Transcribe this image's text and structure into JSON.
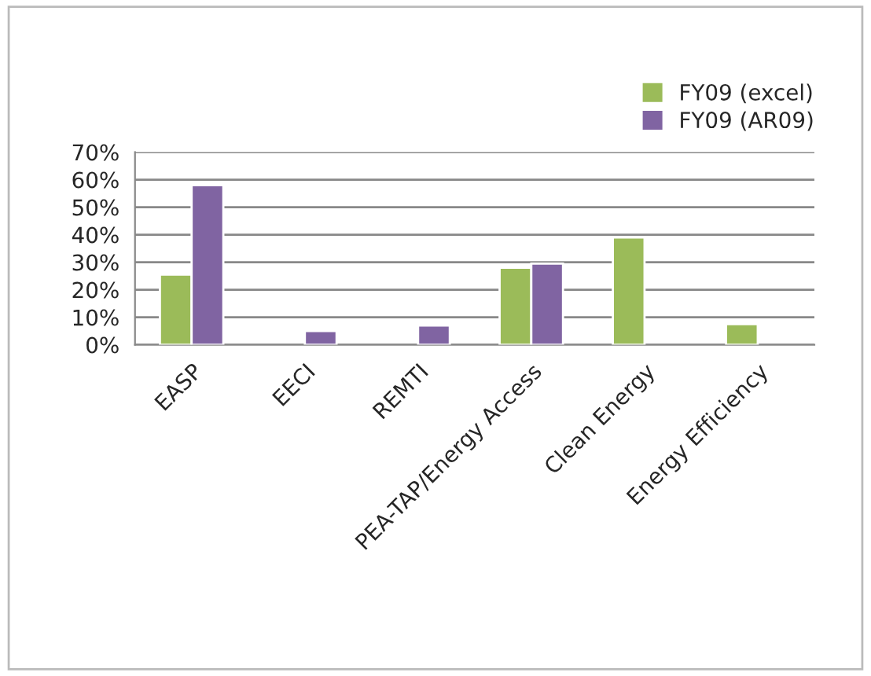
{
  "chart_data": {
    "type": "bar",
    "categories": [
      "EASP",
      "EECI",
      "REMTI",
      "PEA-TAP/Energy Access",
      "Clean Energy",
      "Energy Efficiency"
    ],
    "series": [
      {
        "name": "FY09 (excel)",
        "color": "#9bbb59",
        "values": [
          25.5,
          null,
          null,
          28,
          39,
          7.5
        ]
      },
      {
        "name": "FY09 (AR09)",
        "color": "#8064a2",
        "values": [
          58,
          5,
          7,
          29.5,
          null,
          null
        ]
      }
    ],
    "ylim": [
      0,
      70
    ],
    "yticks": [
      {
        "value": 0,
        "label": "0%"
      },
      {
        "value": 10,
        "label": "10%"
      },
      {
        "value": 20,
        "label": "20%"
      },
      {
        "value": 30,
        "label": "30%"
      },
      {
        "value": 40,
        "label": "40%"
      },
      {
        "value": 50,
        "label": "50%"
      },
      {
        "value": 60,
        "label": "60%"
      },
      {
        "value": 70,
        "label": "70%"
      }
    ],
    "grid": "y",
    "legend": "top right"
  }
}
